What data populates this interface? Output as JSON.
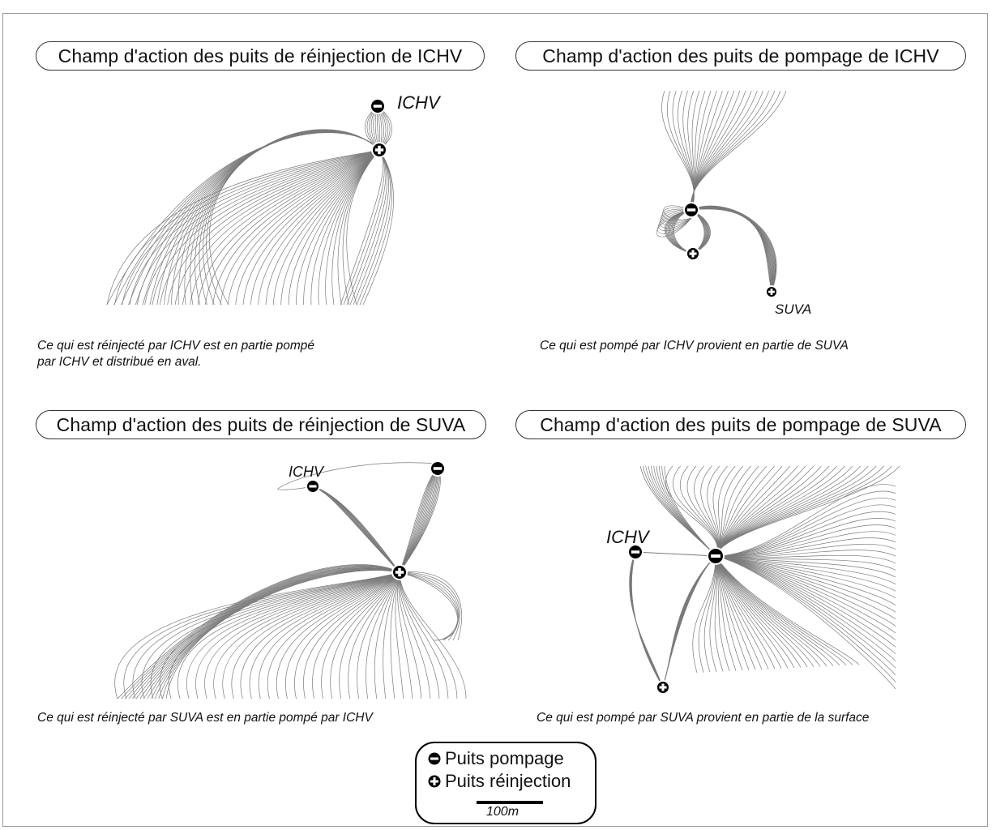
{
  "panels": [
    {
      "title": "Champ d'action des puits de réinjection de ICHV",
      "caption_lines": [
        "Ce qui est réinjecté par ICHV est en partie pompé",
        "par ICHV et distribué en aval."
      ],
      "well_labels": [
        "ICHV"
      ]
    },
    {
      "title": "Champ d'action des puits de pompage de ICHV",
      "caption_lines": [
        "Ce qui est pompé par ICHV provient en partie de SUVA"
      ],
      "well_labels": [
        "SUVA"
      ]
    },
    {
      "title": "Champ d'action des puits de réinjection de SUVA",
      "caption_lines": [
        "Ce qui est réinjecté par SUVA est en partie pompé par ICHV"
      ],
      "well_labels": [
        "ICHV"
      ]
    },
    {
      "title": "Champ d'action des puits de pompage de SUVA",
      "caption_lines": [
        "Ce qui est  pompé par SUVA  provient en partie de la surface"
      ],
      "well_labels": [
        "ICHV"
      ]
    }
  ],
  "legend": {
    "pumping_label": "Puits pompage",
    "pumping_icon": "minus-circle-icon",
    "injection_label": "Puits réinjection",
    "injection_icon": "plus-circle-icon",
    "scale_label": "100m"
  },
  "colors": {
    "streamline": "#7a7a7a",
    "well": "#000000",
    "border": "#9a9a9a"
  }
}
